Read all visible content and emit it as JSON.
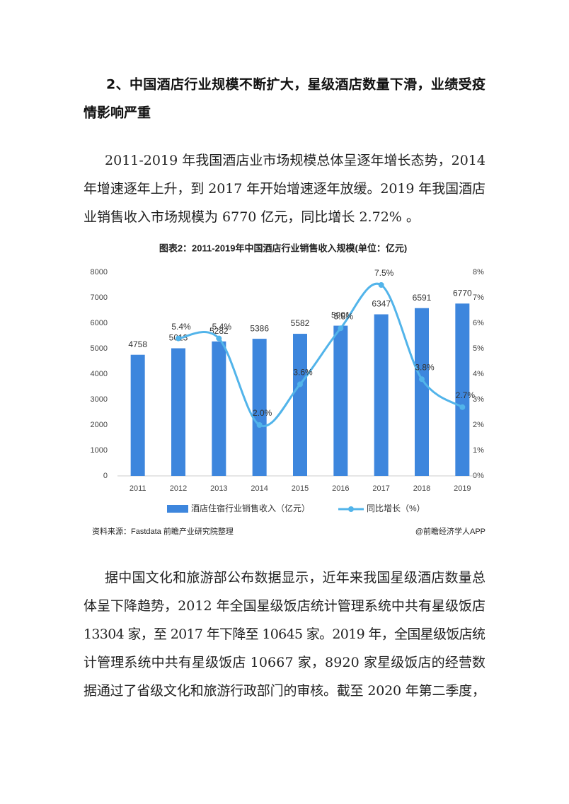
{
  "heading": {
    "lines": [
      "2、中国酒店行业规模不断扩大，星级酒店数量下滑，业绩受疫",
      "情影响严重"
    ]
  },
  "paragraph1": {
    "lines": [
      "2011-2019 年我国酒店业市场规模总体呈逐年增长态势，2014",
      "年增速逐年上升，到 2017 年开始增速逐年放缓。2019 年我国酒店",
      "业销售收入市场规模为 6770 亿元，同比增长 2.72% 。"
    ]
  },
  "chart_data": {
    "type": "bar",
    "title": "图表2：2011-2019年中国酒店行业销售收入规模(单位：亿元)",
    "categories": [
      "2011",
      "2012",
      "2013",
      "2014",
      "2015",
      "2016",
      "2017",
      "2018",
      "2019"
    ],
    "series": [
      {
        "name": "酒店住宿行业销售收入（亿元）",
        "type": "bar",
        "color": "#3d86dd",
        "values": [
          4758,
          5013,
          5282,
          5386,
          5582,
          5901,
          6347,
          6591,
          6770
        ]
      },
      {
        "name": "同比增长（%）",
        "type": "line",
        "axis": "y2",
        "color": "#52b4ea",
        "values": [
          null,
          5.4,
          5.4,
          2.0,
          3.6,
          5.8,
          7.5,
          3.8,
          2.7
        ],
        "value_labels": [
          null,
          "5.4%",
          "5.4%",
          "2.0%",
          "3.6%",
          "5.8%",
          "7.5%",
          "3.8%",
          "2.7%"
        ]
      }
    ],
    "ylim": [
      0,
      8000
    ],
    "yticks": [
      0,
      1000,
      2000,
      3000,
      4000,
      5000,
      6000,
      7000,
      8000
    ],
    "y2lim": [
      0,
      8
    ],
    "y2ticks": [
      {
        "value": 0,
        "label": "0%"
      },
      {
        "value": 1,
        "label": "1%"
      },
      {
        "value": 2,
        "label": "2%"
      },
      {
        "value": 3,
        "label": "3%"
      },
      {
        "value": 4,
        "label": "4%"
      },
      {
        "value": 5,
        "label": "5%"
      },
      {
        "value": 6,
        "label": "6%"
      },
      {
        "value": 7,
        "label": "7%"
      },
      {
        "value": 8,
        "label": "8%"
      }
    ],
    "legend": "bottom",
    "source": "资料来源：Fastdata 前瞻产业研究院整理",
    "credit": "@前瞻经济学人APP"
  },
  "paragraph2": {
    "lines": [
      "据中国文化和旅游部公布数据显示，近年来我国星级酒店数量总",
      "体呈下降趋势，2012 年全国星级饭店统计管理系统中共有星级饭店",
      "13304 家，至 2017 年下降至 10645 家。2019 年，全国星级饭店统",
      "计管理系统中共有星级饭店 10667 家，8920 家星级饭店的经营数",
      "据通过了省级文化和旅游行政部门的审核。截至 2020 年第二季度，"
    ]
  }
}
